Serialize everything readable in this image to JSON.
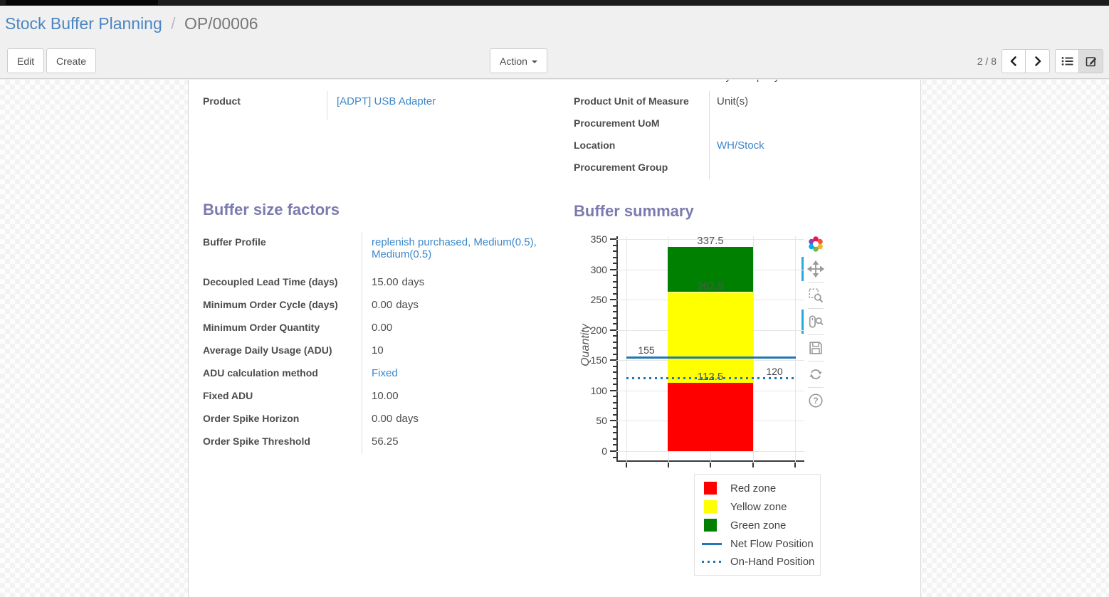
{
  "breadcrumb": {
    "parent": "Stock Buffer Planning",
    "separator": "/",
    "current": "OP/00006"
  },
  "control_panel": {
    "edit": "Edit",
    "create": "Create",
    "action": "Action",
    "pager": "2 / 8"
  },
  "form": {
    "clipped_top_value": "My Company",
    "product": {
      "label": "Product",
      "value": "[ADPT] USB Adapter"
    },
    "info_fields": [
      {
        "label": "Product Unit of Measure",
        "value": "Unit(s)"
      },
      {
        "label": "Procurement UoM",
        "value": ""
      },
      {
        "label": "Location",
        "value": "WH/Stock"
      },
      {
        "label": "Procurement Group",
        "value": ""
      }
    ],
    "buffer_factors": {
      "title": "Buffer size factors",
      "fields": [
        {
          "label": "Buffer Profile",
          "value": "replenish purchased, Medium(0.5), Medium(0.5)"
        },
        {
          "label": "Decoupled Lead Time (days)",
          "value": "15.00",
          "suffix": "days"
        },
        {
          "label": "Minimum Order Cycle (days)",
          "value": "0.00",
          "suffix": "days"
        },
        {
          "label": "Minimum Order Quantity",
          "value": "0.00"
        },
        {
          "label": "Average Daily Usage (ADU)",
          "value": "10"
        },
        {
          "label": "ADU calculation method",
          "value": "Fixed"
        },
        {
          "label": "Fixed ADU",
          "value": "10.00"
        },
        {
          "label": "Order Spike Horizon",
          "value": "0.00",
          "suffix": "days"
        },
        {
          "label": "Order Spike Threshold",
          "value": "56.25"
        }
      ]
    },
    "buffer_summary": {
      "title": "Buffer summary"
    }
  },
  "chart_data": {
    "type": "bar",
    "title": "Buffer summary",
    "ylabel": "Quantity",
    "ylim": [
      0,
      350
    ],
    "ytick_step": 50,
    "yminor_step": 10,
    "grid": true,
    "legend_position": "bottom-right",
    "zones": [
      {
        "name": "Red zone",
        "from": 0,
        "to": 112.5,
        "color": "#ff0000",
        "label": "112.5"
      },
      {
        "name": "Yellow zone",
        "from": 112.5,
        "to": 262.5,
        "color": "#ffff00",
        "label": "262.5"
      },
      {
        "name": "Green zone",
        "from": 262.5,
        "to": 337.5,
        "color": "#008000",
        "label": "337.5"
      }
    ],
    "lines": [
      {
        "name": "Net Flow Position",
        "value": 155,
        "label": "155",
        "style": "solid",
        "color": "#1f77b4",
        "label_side": "left"
      },
      {
        "name": "On-Hand Position",
        "value": 120,
        "label": "120",
        "style": "dotted",
        "color": "#1f77b4",
        "label_side": "right"
      }
    ],
    "legend_items": [
      {
        "label": "Red zone",
        "swatch": "square",
        "color": "#ff0000"
      },
      {
        "label": "Yellow zone",
        "swatch": "square",
        "color": "#ffff00"
      },
      {
        "label": "Green zone",
        "swatch": "square",
        "color": "#008000"
      },
      {
        "label": "Net Flow Position",
        "swatch": "line",
        "color": "#1f77b4"
      },
      {
        "label": "On-Hand Position",
        "swatch": "dots",
        "color": "#1f77b4"
      }
    ]
  }
}
